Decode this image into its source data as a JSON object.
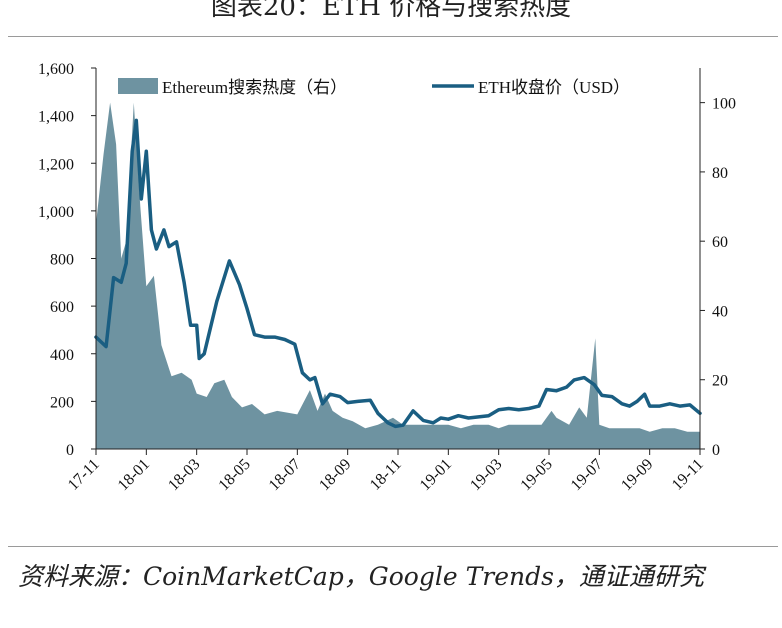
{
  "header": {
    "title": "图表20：ETH 价格与搜索热度"
  },
  "footer": {
    "source": "资料来源：CoinMarketCap，Google Trends，通证通研究"
  },
  "chart_data": {
    "type": "area+line",
    "x_ticks": [
      "17-11",
      "18-01",
      "18-03",
      "18-05",
      "18-07",
      "18-09",
      "18-11",
      "19-01",
      "19-03",
      "19-05",
      "19-07",
      "19-09",
      "19-11"
    ],
    "y_left": {
      "ticks": [
        "0",
        "200",
        "400",
        "600",
        "800",
        "1,000",
        "1,200",
        "1,400",
        "1,600"
      ],
      "range": [
        0,
        1600
      ]
    },
    "y_right": {
      "ticks": [
        "0",
        "20",
        "40",
        "60",
        "80",
        "100"
      ],
      "range": [
        0,
        110
      ]
    },
    "legend_position": "top",
    "grid": false,
    "series": [
      {
        "name": "Ethereum搜索热度（右）",
        "kind": "area",
        "axis": "right",
        "color": "#6e93a1",
        "points": [
          [
            0,
            65
          ],
          [
            0.15,
            85
          ],
          [
            0.28,
            100
          ],
          [
            0.4,
            88
          ],
          [
            0.5,
            55
          ],
          [
            0.6,
            60
          ],
          [
            0.75,
            100
          ],
          [
            0.88,
            70
          ],
          [
            1.0,
            47
          ],
          [
            1.15,
            50
          ],
          [
            1.3,
            30
          ],
          [
            1.5,
            21
          ],
          [
            1.7,
            22
          ],
          [
            1.9,
            20
          ],
          [
            2.0,
            16
          ],
          [
            2.2,
            15
          ],
          [
            2.35,
            19
          ],
          [
            2.55,
            20
          ],
          [
            2.7,
            15
          ],
          [
            2.9,
            12
          ],
          [
            3.1,
            13
          ],
          [
            3.35,
            10
          ],
          [
            3.6,
            11
          ],
          [
            4.0,
            10
          ],
          [
            4.25,
            17
          ],
          [
            4.4,
            11
          ],
          [
            4.55,
            16
          ],
          [
            4.7,
            11
          ],
          [
            4.9,
            9
          ],
          [
            5.1,
            8
          ],
          [
            5.35,
            6
          ],
          [
            5.6,
            7
          ],
          [
            5.9,
            9
          ],
          [
            6.1,
            7
          ],
          [
            6.4,
            7
          ],
          [
            6.7,
            7
          ],
          [
            7.0,
            7
          ],
          [
            7.25,
            6
          ],
          [
            7.5,
            7
          ],
          [
            7.8,
            7
          ],
          [
            8.0,
            6
          ],
          [
            8.2,
            7
          ],
          [
            8.5,
            7
          ],
          [
            8.85,
            7
          ],
          [
            9.05,
            11
          ],
          [
            9.15,
            9
          ],
          [
            9.4,
            7
          ],
          [
            9.6,
            12
          ],
          [
            9.75,
            9
          ],
          [
            9.92,
            32
          ],
          [
            10.0,
            7
          ],
          [
            10.2,
            6
          ],
          [
            10.5,
            6
          ],
          [
            10.8,
            6
          ],
          [
            11.0,
            5
          ],
          [
            11.25,
            6
          ],
          [
            11.5,
            6
          ],
          [
            11.75,
            5
          ],
          [
            12.0,
            5
          ]
        ]
      },
      {
        "name": "ETH收盘价（USD）",
        "kind": "line",
        "axis": "left",
        "color": "#1a5e82",
        "points": [
          [
            0,
            470
          ],
          [
            0.2,
            430
          ],
          [
            0.35,
            720
          ],
          [
            0.5,
            700
          ],
          [
            0.6,
            780
          ],
          [
            0.72,
            1250
          ],
          [
            0.8,
            1380
          ],
          [
            0.9,
            1050
          ],
          [
            1.0,
            1250
          ],
          [
            1.1,
            920
          ],
          [
            1.2,
            840
          ],
          [
            1.35,
            920
          ],
          [
            1.45,
            850
          ],
          [
            1.6,
            870
          ],
          [
            1.75,
            700
          ],
          [
            1.88,
            520
          ],
          [
            2.0,
            520
          ],
          [
            2.05,
            380
          ],
          [
            2.15,
            400
          ],
          [
            2.4,
            620
          ],
          [
            2.65,
            790
          ],
          [
            2.85,
            690
          ],
          [
            3.0,
            590
          ],
          [
            3.15,
            480
          ],
          [
            3.35,
            470
          ],
          [
            3.55,
            470
          ],
          [
            3.75,
            460
          ],
          [
            3.95,
            440
          ],
          [
            4.1,
            320
          ],
          [
            4.25,
            290
          ],
          [
            4.35,
            300
          ],
          [
            4.5,
            190
          ],
          [
            4.65,
            230
          ],
          [
            4.85,
            220
          ],
          [
            5.0,
            195
          ],
          [
            5.2,
            200
          ],
          [
            5.45,
            205
          ],
          [
            5.6,
            150
          ],
          [
            5.8,
            110
          ],
          [
            5.95,
            95
          ],
          [
            6.1,
            100
          ],
          [
            6.3,
            160
          ],
          [
            6.5,
            120
          ],
          [
            6.7,
            110
          ],
          [
            6.85,
            130
          ],
          [
            7.0,
            125
          ],
          [
            7.2,
            140
          ],
          [
            7.4,
            130
          ],
          [
            7.6,
            135
          ],
          [
            7.8,
            140
          ],
          [
            8.0,
            165
          ],
          [
            8.2,
            170
          ],
          [
            8.4,
            165
          ],
          [
            8.6,
            170
          ],
          [
            8.8,
            180
          ],
          [
            8.95,
            250
          ],
          [
            9.15,
            245
          ],
          [
            9.35,
            260
          ],
          [
            9.5,
            290
          ],
          [
            9.7,
            300
          ],
          [
            9.9,
            270
          ],
          [
            10.05,
            225
          ],
          [
            10.25,
            220
          ],
          [
            10.45,
            190
          ],
          [
            10.6,
            180
          ],
          [
            10.75,
            200
          ],
          [
            10.9,
            230
          ],
          [
            11.0,
            180
          ],
          [
            11.2,
            180
          ],
          [
            11.4,
            190
          ],
          [
            11.6,
            180
          ],
          [
            11.8,
            185
          ],
          [
            12.0,
            150
          ]
        ]
      }
    ]
  }
}
